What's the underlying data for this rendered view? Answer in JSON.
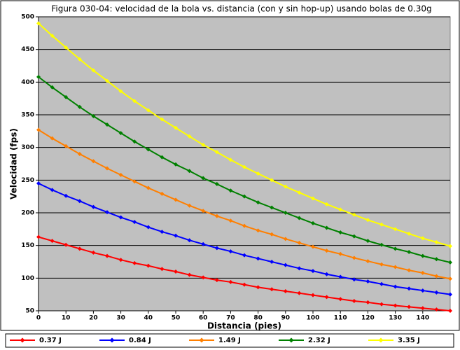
{
  "chart_data": {
    "type": "line",
    "title": "Figura 030-04: velocidad de la bola vs. distancia (con y sin hop-up) usando bolas de 0.30g",
    "x_label": "Distancia (pies)",
    "y_label": "Velocidad (fps)",
    "x": [
      0,
      5,
      10,
      15,
      20,
      25,
      30,
      35,
      40,
      45,
      50,
      55,
      60,
      65,
      70,
      75,
      80,
      85,
      90,
      95,
      100,
      105,
      110,
      115,
      120,
      125,
      130,
      135,
      140,
      145,
      150
    ],
    "series": [
      {
        "name": "0.37 J",
        "color": "#ff0000",
        "values": [
          163,
          157,
          151,
          145,
          139,
          134,
          128,
          123,
          119,
          114,
          110,
          105,
          101,
          97,
          94,
          90,
          86,
          83,
          80,
          77,
          74,
          71,
          68,
          65,
          63,
          60,
          58,
          56,
          54,
          52,
          50
        ]
      },
      {
        "name": "0.84 J",
        "color": "#0000ff",
        "values": [
          245,
          235,
          226,
          218,
          209,
          201,
          193,
          186,
          178,
          171,
          165,
          158,
          152,
          146,
          141,
          135,
          130,
          125,
          120,
          115,
          111,
          106,
          102,
          98,
          95,
          91,
          87,
          84,
          81,
          78,
          75
        ]
      },
      {
        "name": "1.49 J",
        "color": "#ff7f00",
        "values": [
          327,
          314,
          302,
          290,
          279,
          268,
          258,
          248,
          238,
          229,
          220,
          211,
          203,
          195,
          188,
          180,
          173,
          167,
          160,
          154,
          148,
          142,
          137,
          131,
          126,
          121,
          117,
          112,
          108,
          103,
          99
        ]
      },
      {
        "name": "2.32 J",
        "color": "#008000",
        "values": [
          408,
          392,
          377,
          362,
          348,
          335,
          322,
          309,
          297,
          285,
          274,
          264,
          253,
          244,
          234,
          225,
          216,
          208,
          200,
          192,
          184,
          177,
          170,
          164,
          157,
          151,
          145,
          140,
          134,
          129,
          124
        ]
      },
      {
        "name": "3.35 J",
        "color": "#ffff00",
        "values": [
          490,
          471,
          453,
          435,
          418,
          402,
          386,
          371,
          357,
          343,
          330,
          317,
          304,
          293,
          281,
          270,
          260,
          250,
          240,
          231,
          222,
          213,
          205,
          197,
          189,
          182,
          175,
          168,
          161,
          155,
          149
        ]
      }
    ],
    "xlim": [
      0,
      150
    ],
    "xticks": [
      0,
      10,
      20,
      30,
      40,
      50,
      60,
      70,
      80,
      90,
      100,
      110,
      120,
      130,
      140
    ],
    "ylim": [
      50,
      500
    ],
    "yticks": [
      50,
      100,
      150,
      200,
      250,
      300,
      350,
      400,
      450,
      500
    ],
    "grid": true,
    "plot_background": "#c0c0c0",
    "legend": "bottom"
  }
}
